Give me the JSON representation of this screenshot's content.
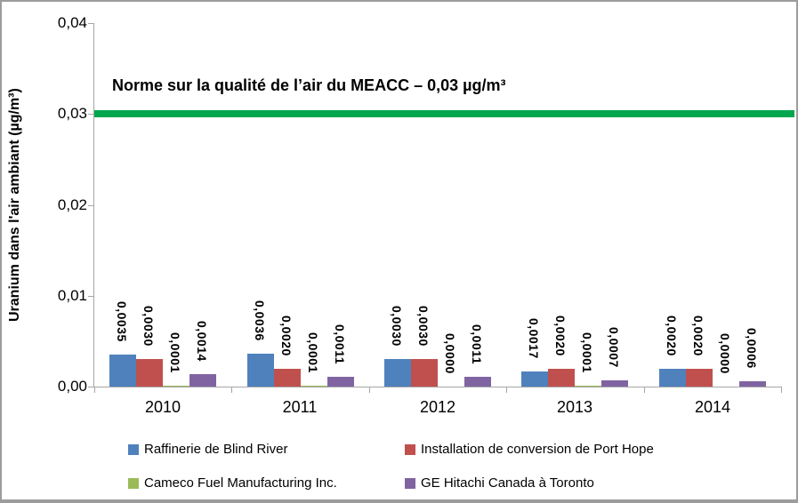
{
  "frame": {
    "background": "#ffffff",
    "border_color": "#9c9c9c",
    "axis_color": "#a6a6a6"
  },
  "chart_data": {
    "type": "bar",
    "title": "",
    "xlabel": "",
    "ylabel": "Uranium dans l'air ambiant (µg/m³)",
    "ylim": [
      0,
      0.04
    ],
    "grid": false,
    "legend_position": "bottom",
    "yticks": [
      {
        "value": 0.0,
        "label": "0,00"
      },
      {
        "value": 0.01,
        "label": "0,01"
      },
      {
        "value": 0.02,
        "label": "0,02"
      },
      {
        "value": 0.03,
        "label": "0,03"
      },
      {
        "value": 0.04,
        "label": "0,04"
      }
    ],
    "categories": [
      "2010",
      "2011",
      "2012",
      "2013",
      "2014"
    ],
    "series": [
      {
        "name": "Raffinerie de Blind River",
        "color": "#4F81BD",
        "values": [
          0.0035,
          0.0036,
          0.003,
          0.0017,
          0.002
        ],
        "labels": [
          "0,0035",
          "0,0036",
          "0,0030",
          "0,0017",
          "0,0020"
        ]
      },
      {
        "name": "Installation de conversion de Port Hope",
        "color": "#C0504D",
        "values": [
          0.003,
          0.002,
          0.003,
          0.002,
          0.002
        ],
        "labels": [
          "0,0030",
          "0,0020",
          "0,0030",
          "0,0020",
          "0,0020"
        ]
      },
      {
        "name": "Cameco Fuel Manufacturing Inc.",
        "color": "#9BBB59",
        "values": [
          0.0001,
          0.0001,
          0.0,
          0.0001,
          0.0
        ],
        "labels": [
          "0,0001",
          "0,0001",
          "0,0000",
          "0,0001",
          "0,0000"
        ]
      },
      {
        "name": "GE Hitachi Canada à Toronto",
        "color": "#8064A2",
        "values": [
          0.0014,
          0.0011,
          0.0011,
          0.0007,
          0.0006
        ],
        "labels": [
          "0,0014",
          "0,0011",
          "0,0011",
          "0,0007",
          "0,0006"
        ]
      }
    ],
    "reference_line": {
      "value": 0.03,
      "color": "#00A64E",
      "label": "Norme sur la qualité de l’air du MEACC – 0,03 µg/m³"
    }
  }
}
